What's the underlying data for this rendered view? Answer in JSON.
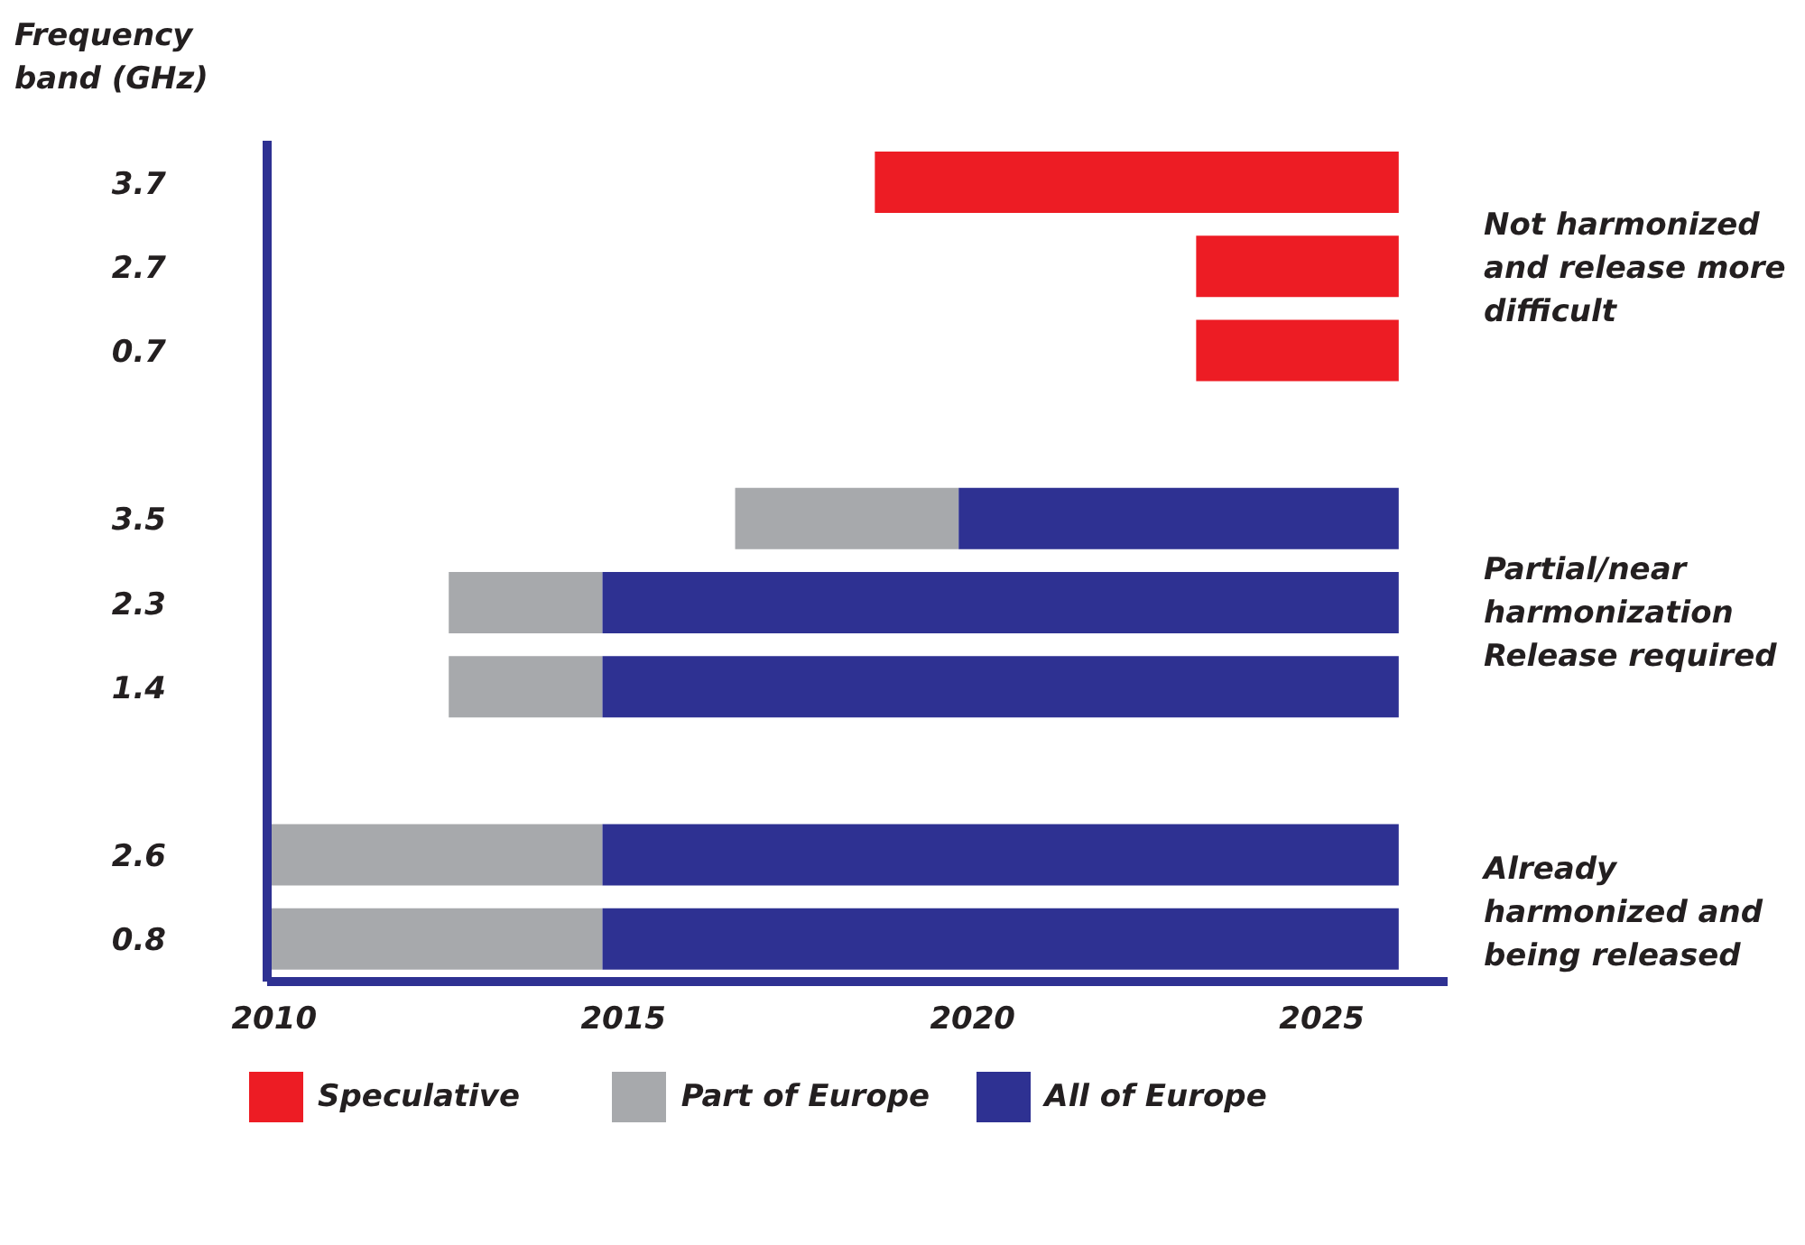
{
  "chart_data": {
    "type": "bar",
    "orientation": "horizontal",
    "ylabel": "Frequency band (GHz)",
    "categories": [
      "3.7",
      "2.7",
      "0.7",
      null,
      "3.5",
      "2.3",
      "1.4",
      null,
      "2.6",
      "0.8"
    ],
    "series": [
      {
        "name": "Speculative",
        "color": "#ed1c24",
        "base": [
          2018.6,
          2023.2,
          2023.2,
          null,
          null,
          null,
          null,
          null,
          null,
          null
        ],
        "values": [
          7.5,
          2.9,
          2.9,
          null,
          null,
          null,
          null,
          null,
          null,
          null
        ]
      },
      {
        "name": "Part of Europe",
        "color": "#a7a9ac",
        "base": [
          null,
          null,
          null,
          null,
          2016.6,
          2012.5,
          2012.5,
          null,
          2009.9,
          2009.9
        ],
        "values": [
          null,
          null,
          null,
          null,
          3.2,
          2.2,
          2.2,
          null,
          4.8,
          4.8
        ]
      },
      {
        "name": "All of Europe",
        "color": "#2e3192",
        "base": [
          null,
          null,
          null,
          null,
          2019.8,
          2014.7,
          2014.7,
          null,
          2014.7,
          2014.7
        ],
        "values": [
          null,
          null,
          null,
          null,
          6.3,
          11.4,
          11.4,
          null,
          11.4,
          11.4
        ]
      }
    ],
    "xlim": [
      2009.9,
      2026.8
    ],
    "xticks": [
      2010,
      2015,
      2020,
      2025
    ],
    "annotations": [
      "Not harmonized and release more difficult",
      "Partial/near harmonization Release required",
      "Already harmonized and being released"
    ],
    "grid": false,
    "legend": "bottom"
  }
}
